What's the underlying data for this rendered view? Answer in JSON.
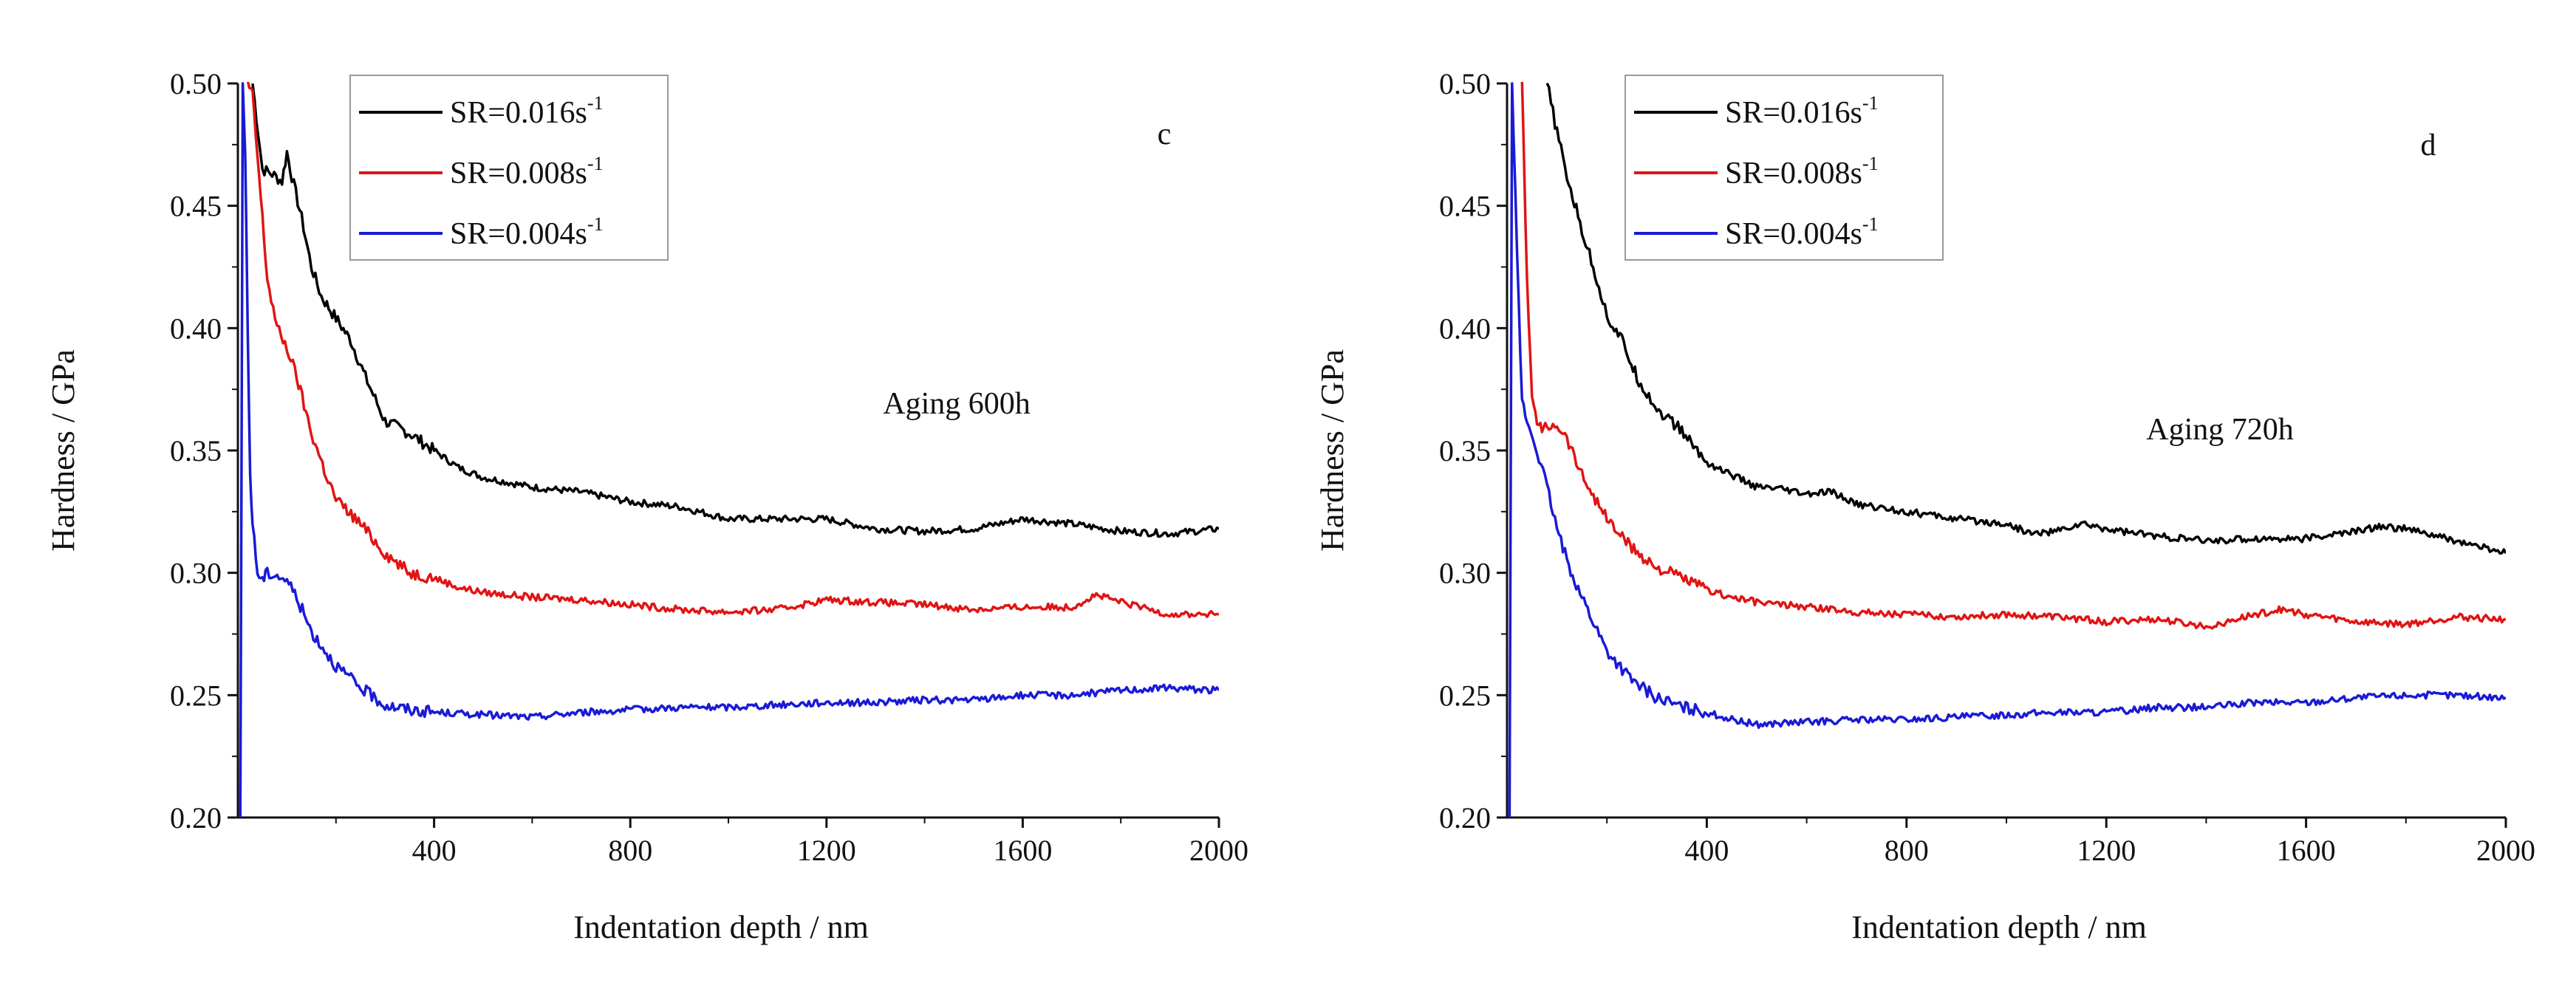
{
  "chart_data": [
    {
      "type": "line",
      "panel_label": "c",
      "annotation": "Aging 600h",
      "xlabel": "Indentation depth / nm",
      "ylabel": "Hardness / GPa",
      "xlim": [
        0,
        2000
      ],
      "ylim": [
        0.2,
        0.5
      ],
      "x_ticks": [
        400,
        800,
        1200,
        1600,
        2000
      ],
      "y_ticks": [
        0.2,
        0.25,
        0.3,
        0.35,
        0.4,
        0.45,
        0.5
      ],
      "x_tick_labels": [
        "400",
        "800",
        "1200",
        "1600",
        "2000"
      ],
      "y_tick_labels": [
        "0.20",
        "0.25",
        "0.30",
        "0.35",
        "0.40",
        "0.45",
        "0.50"
      ],
      "legend": {
        "placement": "top-left"
      },
      "series": [
        {
          "name": "SR=0.016s",
          "name_sup": "-1",
          "color": "#000000",
          "x": [
            30,
            50,
            70,
            90,
            100,
            110,
            130,
            150,
            170,
            200,
            230,
            260,
            300,
            350,
            400,
            450,
            500,
            600,
            700,
            800,
            900,
            1000,
            1100,
            1200,
            1300,
            1400,
            1500,
            1600,
            1700,
            1800,
            1900,
            2000
          ],
          "y": [
            0.5,
            0.465,
            0.463,
            0.46,
            0.472,
            0.462,
            0.445,
            0.425,
            0.413,
            0.404,
            0.395,
            0.38,
            0.362,
            0.357,
            0.35,
            0.343,
            0.339,
            0.335,
            0.333,
            0.329,
            0.327,
            0.322,
            0.322,
            0.322,
            0.318,
            0.317,
            0.318,
            0.322,
            0.32,
            0.317,
            0.316,
            0.318
          ]
        },
        {
          "name": "SR=0.008s",
          "name_sup": "-1",
          "color": "#e11414",
          "x": [
            20,
            30,
            40,
            50,
            60,
            80,
            100,
            120,
            150,
            180,
            200,
            250,
            300,
            350,
            400,
            450,
            500,
            600,
            700,
            800,
            900,
            1000,
            1100,
            1200,
            1300,
            1400,
            1500,
            1600,
            1700,
            1750,
            1800,
            1900,
            2000
          ],
          "y": [
            0.5,
            0.495,
            0.47,
            0.445,
            0.42,
            0.4,
            0.392,
            0.38,
            0.357,
            0.34,
            0.33,
            0.32,
            0.308,
            0.3,
            0.298,
            0.294,
            0.292,
            0.29,
            0.289,
            0.287,
            0.285,
            0.284,
            0.285,
            0.289,
            0.288,
            0.287,
            0.285,
            0.286,
            0.286,
            0.291,
            0.288,
            0.283,
            0.283
          ]
        },
        {
          "name": "SR=0.004s",
          "name_sup": "-1",
          "color": "#1a1ad6",
          "x": [
            5,
            10,
            15,
            20,
            25,
            30,
            40,
            50,
            60,
            80,
            100,
            120,
            150,
            200,
            250,
            300,
            350,
            400,
            500,
            600,
            700,
            800,
            900,
            1000,
            1100,
            1200,
            1300,
            1400,
            1500,
            1600,
            1700,
            1800,
            1900,
            2000
          ],
          "y": [
            0.2,
            0.5,
            0.47,
            0.4,
            0.34,
            0.32,
            0.3,
            0.297,
            0.3,
            0.299,
            0.297,
            0.29,
            0.276,
            0.262,
            0.253,
            0.246,
            0.244,
            0.243,
            0.242,
            0.241,
            0.243,
            0.244,
            0.245,
            0.245,
            0.246,
            0.247,
            0.247,
            0.248,
            0.248,
            0.25,
            0.25,
            0.252,
            0.253,
            0.252
          ]
        }
      ]
    },
    {
      "type": "line",
      "panel_label": "d",
      "annotation": "Aging 720h",
      "xlabel": "Indentation depth / nm",
      "ylabel": "Hardness / GPa",
      "xlim": [
        0,
        2000
      ],
      "ylim": [
        0.2,
        0.5
      ],
      "x_ticks": [
        400,
        800,
        1200,
        1600,
        2000
      ],
      "y_ticks": [
        0.2,
        0.25,
        0.3,
        0.35,
        0.4,
        0.45,
        0.5
      ],
      "x_tick_labels": [
        "400",
        "800",
        "1200",
        "1600",
        "2000"
      ],
      "y_tick_labels": [
        "0.20",
        "0.25",
        "0.30",
        "0.35",
        "0.40",
        "0.45",
        "0.50"
      ],
      "legend": {
        "placement": "top-left"
      },
      "series": [
        {
          "name": "SR=0.016s",
          "name_sup": "-1",
          "color": "#000000",
          "x": [
            80,
            100,
            120,
            150,
            180,
            200,
            230,
            260,
            300,
            350,
            400,
            450,
            500,
            550,
            600,
            650,
            700,
            800,
            900,
            1000,
            1050,
            1100,
            1150,
            1200,
            1300,
            1400,
            1500,
            1600,
            1700,
            1750,
            1800,
            1900,
            2000
          ],
          "y": [
            0.5,
            0.48,
            0.462,
            0.44,
            0.42,
            0.405,
            0.395,
            0.38,
            0.367,
            0.358,
            0.345,
            0.34,
            0.335,
            0.334,
            0.332,
            0.333,
            0.328,
            0.325,
            0.322,
            0.32,
            0.316,
            0.317,
            0.32,
            0.318,
            0.315,
            0.313,
            0.314,
            0.314,
            0.317,
            0.319,
            0.318,
            0.313,
            0.308
          ]
        },
        {
          "name": "SR=0.008s",
          "name_sup": "-1",
          "color": "#e11414",
          "x": [
            30,
            40,
            50,
            60,
            70,
            80,
            100,
            120,
            150,
            200,
            250,
            300,
            350,
            400,
            450,
            500,
            600,
            700,
            800,
            900,
            1000,
            1100,
            1200,
            1300,
            1400,
            1500,
            1550,
            1600,
            1700,
            1800,
            1900,
            2000
          ],
          "y": [
            0.5,
            0.42,
            0.37,
            0.363,
            0.358,
            0.36,
            0.361,
            0.355,
            0.34,
            0.322,
            0.31,
            0.302,
            0.298,
            0.293,
            0.29,
            0.288,
            0.286,
            0.284,
            0.283,
            0.282,
            0.283,
            0.282,
            0.28,
            0.281,
            0.278,
            0.283,
            0.285,
            0.283,
            0.28,
            0.279,
            0.282,
            0.281
          ]
        },
        {
          "name": "SR=0.004s",
          "name_sup": "-1",
          "color": "#1a1ad6",
          "x": [
            5,
            10,
            20,
            30,
            40,
            60,
            80,
            100,
            120,
            150,
            200,
            250,
            300,
            350,
            400,
            450,
            500,
            600,
            700,
            800,
            900,
            1000,
            1100,
            1200,
            1300,
            1400,
            1500,
            1600,
            1700,
            1800,
            1900,
            2000
          ],
          "y": [
            0.2,
            0.5,
            0.43,
            0.37,
            0.362,
            0.35,
            0.335,
            0.318,
            0.305,
            0.29,
            0.268,
            0.256,
            0.249,
            0.245,
            0.243,
            0.24,
            0.238,
            0.239,
            0.24,
            0.24,
            0.241,
            0.242,
            0.243,
            0.243,
            0.245,
            0.245,
            0.247,
            0.247,
            0.249,
            0.25,
            0.25,
            0.249
          ]
        }
      ]
    }
  ]
}
